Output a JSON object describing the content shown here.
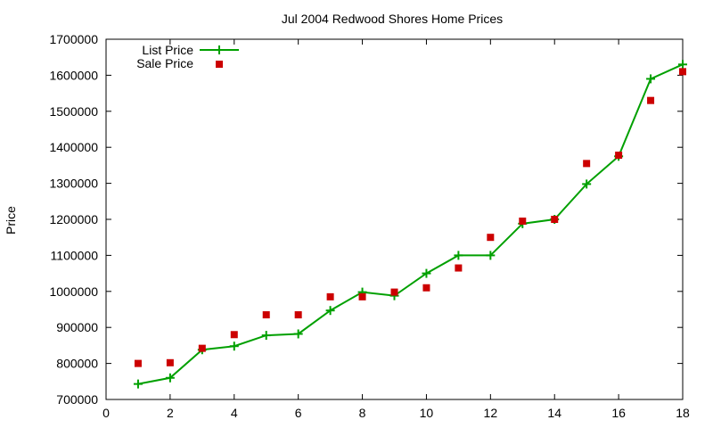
{
  "chart_data": {
    "type": "line",
    "title": "Jul 2004 Redwood Shores Home Prices",
    "xlabel": "",
    "ylabel": "Price",
    "xlim": [
      0,
      18
    ],
    "ylim": [
      700000,
      1700000
    ],
    "x_ticks": [
      "0",
      "2",
      "4",
      "6",
      "8",
      "10",
      "12",
      "14",
      "16",
      "18"
    ],
    "y_ticks": [
      "700000",
      "800000",
      "900000",
      "1000000",
      "1100000",
      "1200000",
      "1300000",
      "1400000",
      "1500000",
      "1600000",
      "1700000"
    ],
    "grid": false,
    "legend_position": "top-left",
    "series": [
      {
        "name": "List Price",
        "style": "line+cross",
        "color": "#00a000",
        "x": [
          1,
          2,
          3,
          4,
          5,
          6,
          7,
          8,
          9,
          10,
          11,
          12,
          13,
          14,
          15,
          16,
          17,
          18
        ],
        "y": [
          743000,
          760000,
          838000,
          848000,
          878000,
          882000,
          947000,
          998000,
          988000,
          1050000,
          1100000,
          1100000,
          1188000,
          1200000,
          1298000,
          1375000,
          1590000,
          1630000
        ]
      },
      {
        "name": "Sale Price",
        "style": "square",
        "color": "#cc0000",
        "x": [
          1,
          2,
          3,
          4,
          5,
          6,
          7,
          8,
          9,
          10,
          11,
          12,
          13,
          14,
          15,
          16,
          17,
          18
        ],
        "y": [
          800000,
          802000,
          842000,
          880000,
          935000,
          935000,
          985000,
          985000,
          998000,
          1010000,
          1065000,
          1150000,
          1195000,
          1200000,
          1355000,
          1378000,
          1530000,
          1610000
        ]
      }
    ]
  }
}
